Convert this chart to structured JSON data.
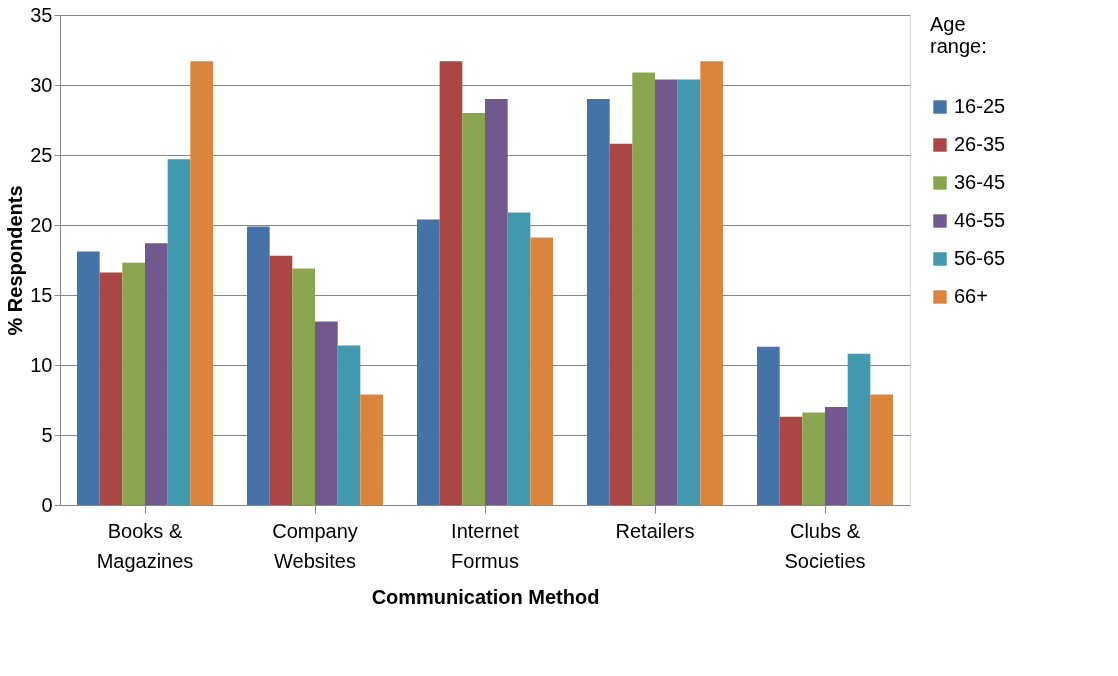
{
  "chart_data": {
    "type": "bar",
    "xlabel": "Communication Method",
    "ylabel": "% Respondents",
    "legend_title": "Age range:",
    "categories": [
      "Books & Magazines",
      "Company Websites",
      "Internet Formus",
      "Retailers",
      "Clubs & Societies"
    ],
    "series": [
      {
        "name": "16-25",
        "color": "#4572a7",
        "values": [
          18.1,
          19.9,
          20.4,
          29.0,
          11.3
        ]
      },
      {
        "name": "26-35",
        "color": "#aa4643",
        "values": [
          16.6,
          17.8,
          31.7,
          25.8,
          6.3
        ]
      },
      {
        "name": "36-45",
        "color": "#89a54e",
        "values": [
          17.3,
          16.9,
          28.0,
          30.9,
          6.6
        ]
      },
      {
        "name": "46-55",
        "color": "#71588f",
        "values": [
          18.7,
          13.1,
          29.0,
          30.4,
          7.0
        ]
      },
      {
        "name": "56-65",
        "color": "#4198af",
        "values": [
          24.7,
          11.4,
          20.9,
          30.4,
          10.8
        ]
      },
      {
        "name": "66+",
        "color": "#db843d",
        "values": [
          31.7,
          7.9,
          19.1,
          31.7,
          7.9
        ]
      }
    ],
    "ylim": [
      0,
      35
    ],
    "yticks": [
      0,
      5,
      10,
      15,
      20,
      25,
      30,
      35
    ],
    "grid": "y",
    "legend": "right"
  }
}
